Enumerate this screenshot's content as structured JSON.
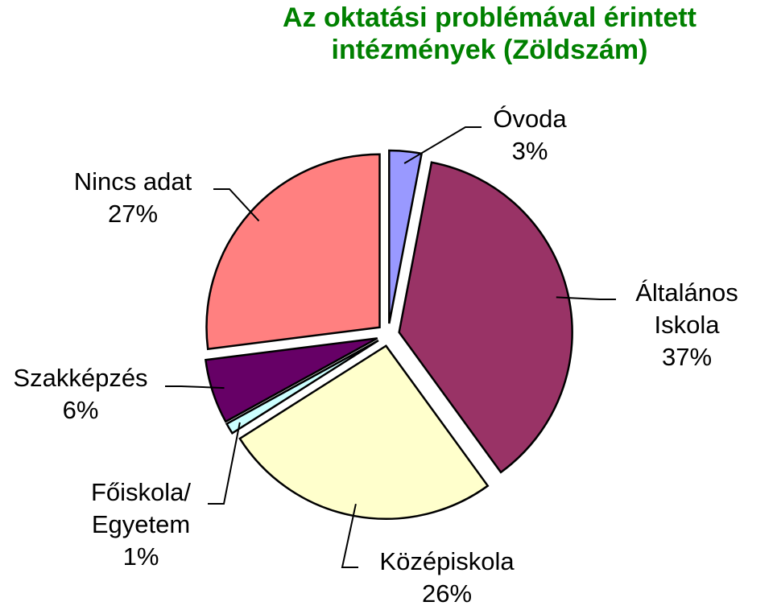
{
  "chart_data": {
    "type": "pie",
    "title": "Az oktatási problémával érintett\nintézmények (Zöldszám)",
    "categories": [
      "Óvoda",
      "Általános\nIskola",
      "Középiskola",
      "Főiskola/\nEgyetem",
      "Szakképzés",
      "Nincs adat"
    ],
    "values": [
      3,
      37,
      26,
      1,
      6,
      27
    ],
    "value_labels": [
      "3%",
      "37%",
      "26%",
      "1%",
      "6%",
      "27%"
    ],
    "colors": [
      "#9999ff",
      "#993366",
      "#ffffcc",
      "#ccffff",
      "#660066",
      "#ff8080"
    ],
    "exploded": true
  }
}
